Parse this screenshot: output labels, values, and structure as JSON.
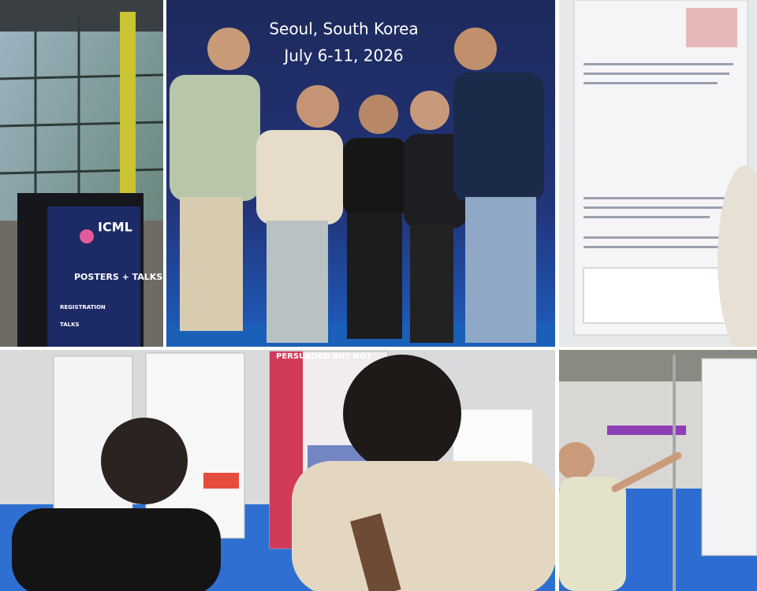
{
  "photos": [
    {
      "banner": {
        "location": "Seoul, South Korea",
        "dates": "July 6-11, 2026"
      }
    },
    {
      "kiosk": {
        "logo": "ICML",
        "headline": "POSTERS + TALKS",
        "section1": "REGISTRATION",
        "section2": "TALKS"
      }
    },
    {
      "poster": {
        "title": "PERSUADED BUT NOT"
      }
    }
  ]
}
